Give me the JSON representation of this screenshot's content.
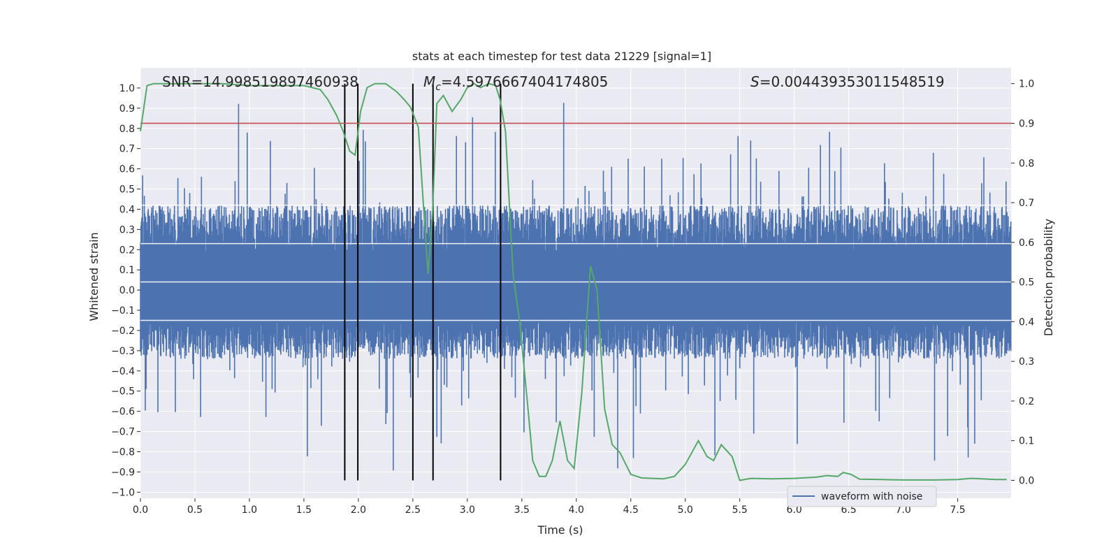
{
  "chart_data": {
    "type": "line",
    "title": "stats at each timestep for test data 21229 [signal=1]",
    "xlabel": "Time (s)",
    "ylabel": "Whitened strain",
    "y2label": "Detection probability",
    "xlim": [
      0.0,
      7.99
    ],
    "ylim": [
      -1.03,
      1.1
    ],
    "y2lim": [
      -0.045,
      1.04
    ],
    "grid": true,
    "legend_position": "bottom-right",
    "x_ticks": [
      "0.0",
      "0.5",
      "1.0",
      "1.5",
      "2.0",
      "2.5",
      "3.0",
      "3.5",
      "4.0",
      "4.5",
      "5.0",
      "5.5",
      "6.0",
      "6.5",
      "7.0",
      "7.5"
    ],
    "y_ticks": [
      "1.0",
      "0.9",
      "0.8",
      "0.7",
      "0.6",
      "0.5",
      "0.4",
      "0.3",
      "0.2",
      "0.1",
      "0.0",
      "−0.1",
      "−0.2",
      "−0.3",
      "−0.4",
      "−0.5",
      "−0.6",
      "−0.7",
      "−0.8",
      "−0.9",
      "−1.0"
    ],
    "y2_ticks": [
      "1.0",
      "0.9",
      "0.8",
      "0.7",
      "0.6",
      "0.5",
      "0.4",
      "0.3",
      "0.2",
      "0.1",
      "0.0"
    ],
    "annotations": {
      "snr_text": "SNR=14.998519897460938",
      "mc_symbol": "M",
      "mc_sub": "c",
      "mc_value": "=4.5976667404174805",
      "s_symbol": "S",
      "s_value": "=0.004439353011548519"
    },
    "threshold": {
      "y2": 0.9,
      "color": "#c44e52"
    },
    "vertical_lines_x": [
      1.875,
      1.995,
      2.5,
      2.685,
      3.305
    ],
    "series": [
      {
        "name": "waveform with noise",
        "axis": "left",
        "color": "#4c72b0",
        "kind": "noise-band",
        "dense_range": [
          -0.34,
          0.42
        ],
        "peak_max": 1.0,
        "trough_min": -0.92
      },
      {
        "axis": "right",
        "color": "#55a868",
        "x": [
          0.0,
          0.06,
          0.12,
          0.25,
          0.5,
          0.75,
          1.0,
          1.25,
          1.5,
          1.65,
          1.72,
          1.8,
          1.86,
          1.92,
          1.97,
          2.02,
          2.08,
          2.15,
          2.25,
          2.35,
          2.42,
          2.48,
          2.55,
          2.6,
          2.64,
          2.68,
          2.72,
          2.78,
          2.86,
          2.94,
          3.0,
          3.06,
          3.12,
          3.2,
          3.26,
          3.3,
          3.35,
          3.42,
          3.48,
          3.55,
          3.6,
          3.66,
          3.72,
          3.78,
          3.85,
          3.92,
          3.98,
          4.05,
          4.13,
          4.19,
          4.26,
          4.33,
          4.4,
          4.5,
          4.6,
          4.8,
          4.9,
          5.0,
          5.06,
          5.12,
          5.2,
          5.26,
          5.33,
          5.43,
          5.5,
          5.6,
          5.8,
          6.0,
          6.2,
          6.3,
          6.4,
          6.45,
          6.52,
          6.6,
          6.8,
          7.0,
          7.3,
          7.5,
          7.62,
          7.72,
          7.85,
          7.95
        ],
        "y": [
          0.88,
          0.995,
          1.0,
          1.0,
          1.0,
          1.0,
          0.995,
          0.995,
          0.995,
          0.985,
          0.96,
          0.92,
          0.88,
          0.83,
          0.82,
          0.93,
          0.99,
          1.0,
          1.0,
          0.98,
          0.96,
          0.94,
          0.89,
          0.68,
          0.52,
          0.67,
          0.95,
          0.97,
          0.93,
          0.96,
          0.99,
          1.0,
          0.99,
          1.0,
          0.995,
          0.96,
          0.88,
          0.52,
          0.4,
          0.2,
          0.05,
          0.01,
          0.01,
          0.05,
          0.15,
          0.05,
          0.03,
          0.22,
          0.54,
          0.48,
          0.18,
          0.09,
          0.07,
          0.015,
          0.006,
          0.004,
          0.01,
          0.04,
          0.07,
          0.1,
          0.06,
          0.05,
          0.09,
          0.06,
          0.0,
          0.005,
          0.004,
          0.005,
          0.008,
          0.012,
          0.01,
          0.02,
          0.015,
          0.003,
          0.002,
          0.001,
          0.001,
          0.002,
          0.005,
          0.004,
          0.002,
          0.002
        ]
      }
    ]
  }
}
